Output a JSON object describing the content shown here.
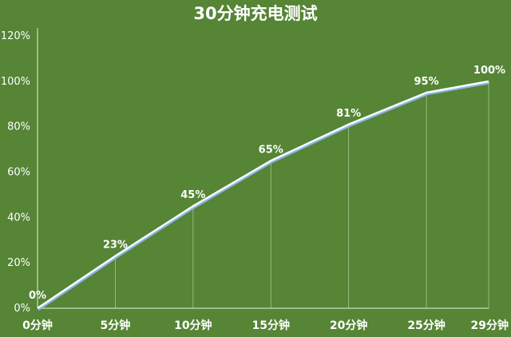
{
  "colors": {
    "background": "#558535",
    "line": "#ffffff",
    "line_shadow": "#8ab4e6",
    "drop_line": "#a9c78f",
    "axis": "#e8efe0",
    "text": "#ffffff"
  },
  "chart_data": {
    "type": "line",
    "title": "30分钟充电测试",
    "xlabel": "",
    "ylabel": "",
    "grid": false,
    "categories": [
      "0分钟",
      "5分钟",
      "10分钟",
      "15分钟",
      "20分钟",
      "25分钟",
      "29分钟"
    ],
    "x": [
      0,
      5,
      10,
      15,
      20,
      25,
      29
    ],
    "y_ticks": [
      "0%",
      "20%",
      "40%",
      "60%",
      "80%",
      "100%",
      "120%"
    ],
    "ylim": [
      0,
      120
    ],
    "series": [
      {
        "values": [
          0,
          23,
          45,
          65,
          81,
          95,
          100
        ],
        "labels": [
          "0%",
          "23%",
          "45%",
          "65%",
          "81%",
          "95%",
          "100%"
        ]
      }
    ]
  }
}
